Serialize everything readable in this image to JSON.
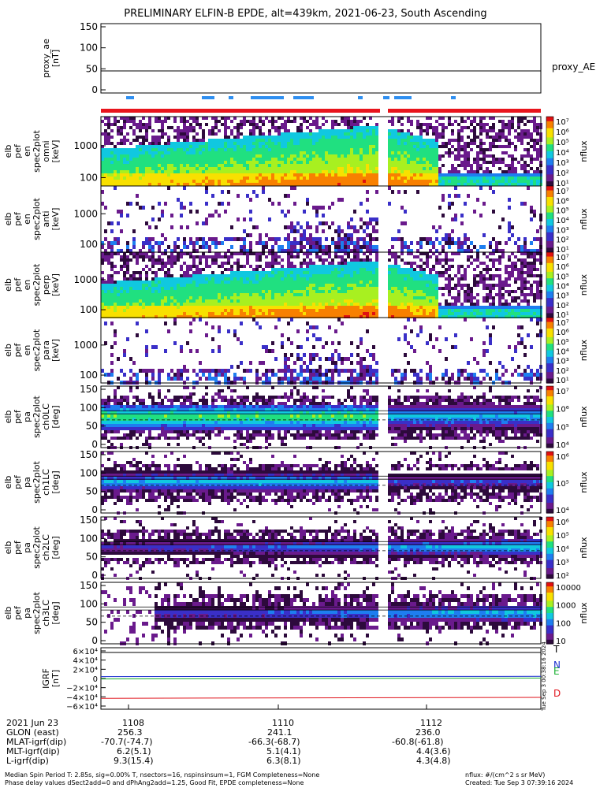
{
  "title": "PRELIMINARY ELFIN-B EPDE, alt=439km, 2021-06-23, South Ascending",
  "colors": {
    "panel_bg": "#ffffff",
    "science_bar": "#e8141c",
    "fast_bar": "#2f8ff0",
    "grf_T": "#000000",
    "grf_N": "#1c2fd0",
    "grf_E": "#18b030",
    "grf_D": "#e0141c"
  },
  "colormap": [
    "#ffffff",
    "#2d0a3c",
    "#6a1a8c",
    "#3a2fc8",
    "#1e7ef0",
    "#10c8e0",
    "#20e080",
    "#a8f020",
    "#f8e000",
    "#f88000",
    "#e01010"
  ],
  "panels": [
    {
      "key": "proxy",
      "ylabel": [
        "proxy_ae",
        "[nT]"
      ],
      "ticks": [
        "150",
        "100",
        "50",
        "0"
      ],
      "right_label": "proxy_AE"
    },
    {
      "key": "e1",
      "ylabel": [
        "elb",
        "pef",
        "en",
        "spec2plot",
        "omni",
        "[keV]"
      ],
      "ticks": [
        "1000",
        "100"
      ],
      "cbar_label": "nflux"
    },
    {
      "key": "e2",
      "ylabel": [
        "elb",
        "pef",
        "en",
        "spec2plot",
        "anti",
        "[keV]"
      ],
      "ticks": [
        "1000",
        "100"
      ],
      "cbar_label": "nflux"
    },
    {
      "key": "e3",
      "ylabel": [
        "elb",
        "pef",
        "en",
        "spec2plot",
        "perp",
        "[keV]"
      ],
      "ticks": [
        "1000",
        "100"
      ],
      "cbar_label": "nflux"
    },
    {
      "key": "e4",
      "ylabel": [
        "elb",
        "pef",
        "en",
        "spec2plot",
        "para",
        "[keV]"
      ],
      "ticks": [
        "1000",
        "100"
      ],
      "cbar_label": "nflux"
    },
    {
      "key": "p0",
      "ylabel": [
        "elb",
        "pef",
        "pa",
        "spec2plot",
        "ch0LC",
        "[deg]"
      ],
      "ticks": [
        "150",
        "100",
        "50",
        "0"
      ],
      "cbar_label": "nflux"
    },
    {
      "key": "p1",
      "ylabel": [
        "elb",
        "pef",
        "pa",
        "spec2plot",
        "ch1LC",
        "[deg]"
      ],
      "ticks": [
        "150",
        "100",
        "50",
        "0"
      ],
      "cbar_label": "nflux"
    },
    {
      "key": "p2",
      "ylabel": [
        "elb",
        "pef",
        "pa",
        "spec2plot",
        "ch2LC",
        "[deg]"
      ],
      "ticks": [
        "150",
        "100",
        "50",
        "0"
      ],
      "cbar_label": "nflux"
    },
    {
      "key": "p3",
      "ylabel": [
        "elb",
        "pef",
        "pa",
        "spec2plot",
        "ch3LC",
        "[deg]"
      ],
      "ticks": [
        "150",
        "100",
        "50",
        "0"
      ],
      "cbar_label": "nflux"
    },
    {
      "key": "grf",
      "ylabel": [
        "IGRF",
        "[nT]"
      ],
      "ticks": [
        "6×10⁴",
        "4×10⁴",
        "2×10⁴",
        "0",
        "−2×10⁴",
        "−4×10⁴",
        "−6×10⁴"
      ],
      "line_labels": [
        "T",
        "N",
        "E",
        "D"
      ]
    }
  ],
  "chart_data": [
    {
      "type": "line",
      "panel": "proxy",
      "series": [
        {
          "name": "proxy_AE",
          "x": [
            "1107",
            "1114"
          ],
          "y": [
            50,
            50
          ]
        }
      ],
      "ylim": [
        0,
        160
      ]
    },
    {
      "type": "heatmap",
      "panel": "e1",
      "scale": "log",
      "ylim": [
        63,
        6000
      ],
      "zlim": [
        1,
        10000000
      ],
      "cbar_ticks": [
        "10⁷",
        "10⁶",
        "10⁵",
        "10⁴",
        "10³",
        "10²",
        "10¹"
      ]
    },
    {
      "type": "heatmap",
      "panel": "e2",
      "scale": "log",
      "ylim": [
        63,
        6000
      ],
      "zlim": [
        1,
        10000000
      ],
      "cbar_ticks": [
        "10⁷",
        "10⁶",
        "10⁵",
        "10⁴",
        "10³",
        "10²",
        "10¹"
      ]
    },
    {
      "type": "heatmap",
      "panel": "e3",
      "scale": "log",
      "ylim": [
        63,
        6000
      ],
      "zlim": [
        1,
        10000000
      ],
      "cbar_ticks": [
        "10⁷",
        "10⁶",
        "10⁵",
        "10⁴",
        "10³",
        "10²",
        "10¹"
      ]
    },
    {
      "type": "heatmap",
      "panel": "e4",
      "scale": "log",
      "ylim": [
        63,
        6000
      ],
      "zlim": [
        1,
        10000000
      ],
      "cbar_ticks": [
        "10⁷",
        "10⁶",
        "10⁵",
        "10⁴",
        "10³",
        "10²",
        "10¹"
      ]
    },
    {
      "type": "heatmap",
      "panel": "p0",
      "ylim": [
        0,
        180
      ],
      "zlim": [
        3000,
        10000000
      ],
      "cbar_ticks": [
        "10⁷",
        "10⁶",
        "10⁵",
        "10⁴"
      ]
    },
    {
      "type": "heatmap",
      "panel": "p1",
      "ylim": [
        0,
        180
      ],
      "zlim": [
        1000,
        3000000
      ],
      "cbar_ticks": [
        "10⁶",
        "10⁵",
        "10⁴"
      ]
    },
    {
      "type": "heatmap",
      "panel": "p2",
      "ylim": [
        0,
        180
      ],
      "zlim": [
        30,
        3000000
      ],
      "cbar_ticks": [
        "10⁶",
        "10⁵",
        "10⁴",
        "10³",
        "10²"
      ]
    },
    {
      "type": "heatmap",
      "panel": "p3",
      "ylim": [
        0,
        180
      ],
      "zlim": [
        10,
        10000
      ],
      "cbar_ticks": [
        "10000",
        "1000",
        "100",
        "10"
      ]
    },
    {
      "type": "line",
      "panel": "grf",
      "ylim": [
        -65000,
        65000
      ],
      "series": [
        {
          "name": "T",
          "y": [
            55000,
            55000
          ]
        },
        {
          "name": "N",
          "y": [
            4000,
            4500
          ]
        },
        {
          "name": "E",
          "y": [
            -1000,
            800
          ]
        },
        {
          "name": "D",
          "y": [
            -42000,
            -40000
          ]
        }
      ]
    }
  ],
  "grf_side_text": "Tue Sep  3 00:38:16 2024",
  "xaxis": {
    "rows": [
      {
        "label": "2021 Jun 23",
        "values": [
          "1108",
          "1110",
          "1112"
        ]
      },
      {
        "label": "GLON (east)",
        "values": [
          "256.3",
          "241.1",
          "236.0"
        ]
      },
      {
        "label": "MLAT-igrf(dip)",
        "values": [
          "-70.7(-74.7)",
          "-66.3(-68.7)",
          "-60.8(-61.8)"
        ]
      },
      {
        "label": "MLT-igrf(dip)",
        "values": [
          "6.2(5.1)",
          "5.1(4.1)",
          "4.4(3.6)"
        ]
      },
      {
        "label": "L-igrf(dip)",
        "values": [
          "9.3(15.4)",
          "6.3(8.1)",
          "4.3(4.8)"
        ]
      }
    ]
  },
  "footer": {
    "line1": "Median Spin Period T: 2.85s, sig=0.00% T, nsectors=16, nspinsinsum=1, FGM Completeness=None",
    "line2": "Phase delay values dSect2add=0 and dPhAng2add=1.25, Good Fit, EPDE completeness=None",
    "units": "nflux: #/(cm^2 s sr MeV)",
    "created": "Created: Tue Sep  3 07:39:16 2024"
  }
}
